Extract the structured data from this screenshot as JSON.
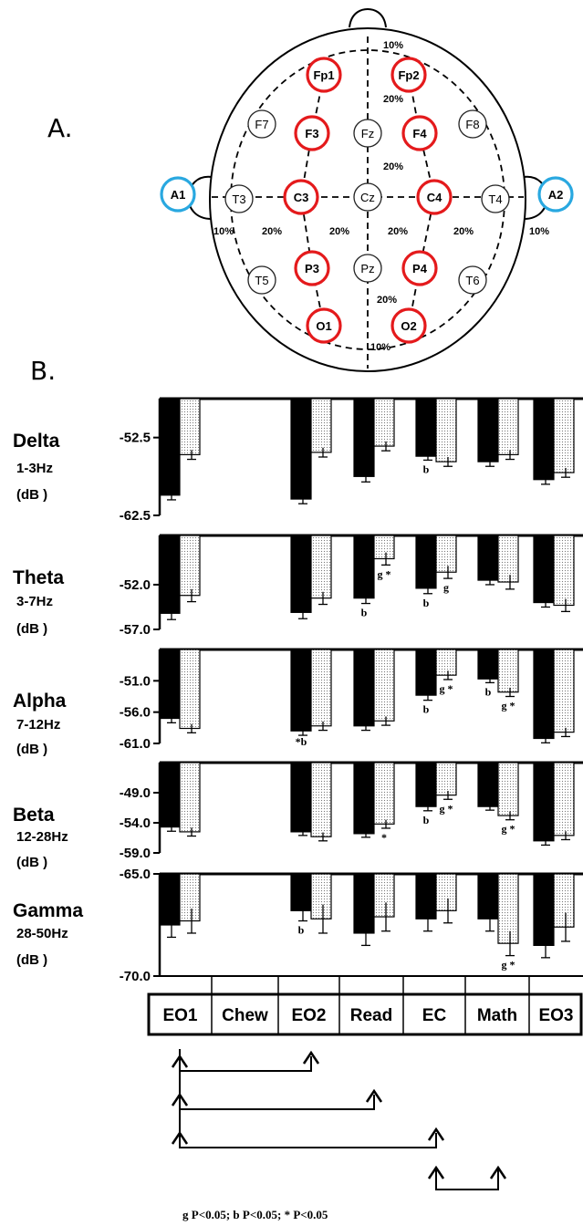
{
  "panel_a": {
    "label": "A.",
    "red_electrodes": [
      "Fp1",
      "Fp2",
      "F3",
      "F4",
      "C3",
      "C4",
      "P3",
      "P4",
      "O1",
      "O2"
    ],
    "black_electrodes": [
      "F7",
      "F8",
      "Fz",
      "Cz",
      "Pz",
      "T3",
      "T4",
      "T5",
      "T6"
    ],
    "blue_electrodes": [
      "A1",
      "A2"
    ],
    "percent_labels": [
      "10%",
      "20%",
      "20%",
      "10%",
      "20%",
      "20%",
      "20%",
      "20%",
      "10%",
      "20%",
      "10%"
    ],
    "colors": {
      "red": "#e41a1c",
      "blue": "#29a8e0",
      "black": "#222222"
    }
  },
  "panel_b": {
    "label": "B.",
    "conditions": [
      "EO1",
      "Chew",
      "EO2",
      "Read",
      "EC",
      "Math",
      "EO3"
    ],
    "legend_text": "g P<0.05; b P<0.05; * P<0.05",
    "comparisons": [
      [
        "EO1",
        "EO2"
      ],
      [
        "EO1",
        "Read"
      ],
      [
        "EO1",
        "EC"
      ],
      [
        "EC",
        "Math"
      ]
    ]
  },
  "chart_data": [
    {
      "type": "bar",
      "band": "Delta",
      "freq": "1-3Hz",
      "unit": "(dB )",
      "yticks": [
        "-52.5",
        "-62.5"
      ],
      "ylim": [
        -47.5,
        -62.5
      ],
      "categories": [
        "EO1",
        "Chew",
        "EO2",
        "Read",
        "EC",
        "Math",
        "EO3"
      ],
      "series": [
        {
          "fill": "black",
          "values": [
            -59.9,
            null,
            -60.4,
            -57.5,
            -54.9,
            -55.6,
            -57.9
          ],
          "err": [
            0.6,
            null,
            0.6,
            0.7,
            0.5,
            0.6,
            0.6
          ]
        },
        {
          "fill": "dotted",
          "values": [
            -54.7,
            null,
            -54.4,
            -53.6,
            -55.6,
            -54.7,
            -57.0
          ],
          "err": [
            0.6,
            null,
            0.6,
            0.6,
            0.6,
            0.6,
            0.6
          ]
        }
      ],
      "annotations": [
        {
          "cond": "EC",
          "series": 0,
          "text": "b"
        }
      ]
    },
    {
      "type": "bar",
      "band": "Theta",
      "freq": "3-7Hz",
      "unit": "(dB )",
      "yticks": [
        "-52.0",
        "-57.0"
      ],
      "ylim": [
        -46.5,
        -57.0
      ],
      "categories": [
        "EO1",
        "Chew",
        "EO2",
        "Read",
        "EC",
        "Math",
        "EO3"
      ],
      "series": [
        {
          "fill": "black",
          "values": [
            -55.2,
            null,
            -55.1,
            -53.5,
            -52.4,
            -51.5,
            -54.0
          ],
          "err": [
            0.7,
            null,
            0.7,
            0.6,
            0.6,
            0.5,
            0.5
          ]
        },
        {
          "fill": "dotted",
          "values": [
            -53.2,
            null,
            -53.5,
            -49.1,
            -50.6,
            -51.7,
            -54.3
          ],
          "err": [
            0.7,
            null,
            0.7,
            0.7,
            0.7,
            0.8,
            0.7
          ]
        }
      ],
      "annotations": [
        {
          "cond": "Read",
          "series": 0,
          "text": "b"
        },
        {
          "cond": "Read",
          "series": 1,
          "text": "g *"
        },
        {
          "cond": "EC",
          "series": 0,
          "text": "b"
        },
        {
          "cond": "EC",
          "series": 1,
          "text": "g"
        }
      ]
    },
    {
      "type": "bar",
      "band": "Alpha",
      "freq": "7-12Hz",
      "unit": "(dB )",
      "yticks": [
        "-51.0",
        "-56.0",
        "-61.0"
      ],
      "ylim": [
        -46.0,
        -61.0
      ],
      "categories": [
        "EO1",
        "Chew",
        "EO2",
        "Read",
        "EC",
        "Math",
        "EO3"
      ],
      "series": [
        {
          "fill": "black",
          "values": [
            -57.0,
            null,
            -59.0,
            -58.2,
            -53.3,
            -50.7,
            -60.2
          ],
          "err": [
            0.7,
            null,
            0.7,
            0.7,
            0.8,
            0.6,
            0.7
          ]
        },
        {
          "fill": "dotted",
          "values": [
            -58.6,
            null,
            -58.2,
            -57.4,
            -50.1,
            -52.8,
            -59.2
          ],
          "err": [
            0.7,
            null,
            0.7,
            0.7,
            0.7,
            0.7,
            0.7
          ]
        }
      ],
      "annotations": [
        {
          "cond": "EO2",
          "series": 0,
          "text": "*b"
        },
        {
          "cond": "EC",
          "series": 0,
          "text": "b"
        },
        {
          "cond": "EC",
          "series": 1,
          "text": "g *"
        },
        {
          "cond": "Math",
          "series": 0,
          "text": "b"
        },
        {
          "cond": "Math",
          "series": 1,
          "text": "g *"
        }
      ]
    },
    {
      "type": "bar",
      "band": "Beta",
      "freq": "12-28Hz",
      "unit": "(dB )",
      "yticks": [
        "-49.0",
        "-54.0",
        "-59.0"
      ],
      "ylim": [
        -44.0,
        -59.0
      ],
      "categories": [
        "EO1",
        "Chew",
        "EO2",
        "Read",
        "EC",
        "Math",
        "EO3"
      ],
      "series": [
        {
          "fill": "black",
          "values": [
            -54.7,
            null,
            -55.5,
            -55.8,
            -51.3,
            -51.3,
            -57.0
          ],
          "err": [
            0.7,
            null,
            0.6,
            0.6,
            0.7,
            0.6,
            0.7
          ]
        },
        {
          "fill": "dotted",
          "values": [
            -55.5,
            null,
            -56.3,
            -54.2,
            -49.4,
            -52.8,
            -56.1
          ],
          "err": [
            0.7,
            null,
            0.7,
            0.7,
            0.7,
            0.7,
            0.7
          ]
        }
      ],
      "annotations": [
        {
          "cond": "Read",
          "series": 1,
          "text": "*"
        },
        {
          "cond": "EC",
          "series": 0,
          "text": "b"
        },
        {
          "cond": "EC",
          "series": 1,
          "text": "g *"
        },
        {
          "cond": "Math",
          "series": 1,
          "text": "g *"
        }
      ]
    },
    {
      "type": "bar",
      "band": "Gamma",
      "freq": "28-50Hz",
      "unit": "(dB )",
      "yticks": [
        "-65.0",
        "-70.0"
      ],
      "ylim": [
        -65.0,
        -70.0
      ],
      "categories": [
        "EO1",
        "Chew",
        "EO2",
        "Read",
        "EC",
        "Math",
        "EO3"
      ],
      "series": [
        {
          "fill": "black",
          "values": [
            -67.5,
            null,
            -66.8,
            -67.9,
            -67.2,
            -67.2,
            -68.5
          ],
          "err": [
            0.6,
            null,
            0.5,
            0.6,
            0.6,
            0.6,
            0.6
          ]
        },
        {
          "fill": "dotted",
          "values": [
            -67.3,
            null,
            -67.2,
            -67.1,
            -66.8,
            -68.4,
            -67.6
          ],
          "err": [
            0.6,
            null,
            0.7,
            0.7,
            0.6,
            0.6,
            0.7
          ]
        }
      ],
      "annotations": [
        {
          "cond": "EO2",
          "series": 0,
          "text": "b"
        },
        {
          "cond": "Math",
          "series": 1,
          "text": "g *"
        }
      ]
    }
  ]
}
